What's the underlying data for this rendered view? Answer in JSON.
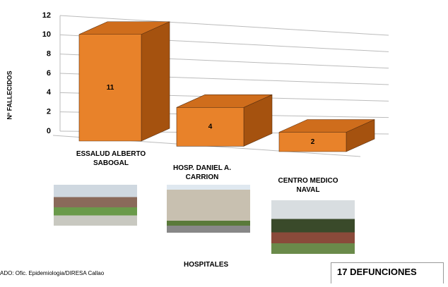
{
  "chart_data": {
    "type": "bar3d",
    "y_label": "Nº FALLECIDOS",
    "x_label": "HOSPITALES",
    "categories": [
      "ESSALUD ALBERTO SABOGAL",
      "HOSP. DANIEL A. CARRION",
      "CENTRO MEDICO NAVAL"
    ],
    "values": [
      11,
      4,
      2
    ],
    "color": "#e8822a",
    "ylim": [
      0,
      12
    ],
    "yticks": [
      0,
      2,
      4,
      6,
      8,
      10,
      12
    ],
    "grid": true
  },
  "source": "ADO: Ofic. Epidemiologia/DIRESA Callao",
  "total": "17 DEFUNCIONES"
}
